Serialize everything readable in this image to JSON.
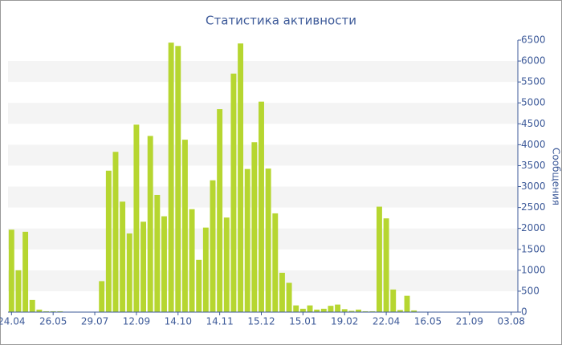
{
  "chart_data": {
    "type": "bar",
    "title": "Статистика активности",
    "y_label": "Сообщения",
    "categories": [
      "24.04",
      null,
      null,
      null,
      null,
      null,
      "26.05",
      null,
      null,
      null,
      null,
      null,
      "29.07",
      null,
      null,
      null,
      null,
      null,
      "12.09",
      null,
      null,
      null,
      null,
      null,
      "14.10",
      null,
      null,
      null,
      null,
      null,
      "14.11",
      null,
      null,
      null,
      null,
      null,
      "15.12",
      null,
      null,
      null,
      null,
      null,
      "15.01",
      null,
      null,
      null,
      null,
      null,
      "19.02",
      null,
      null,
      null,
      null,
      null,
      "22.04",
      null,
      null,
      null,
      null,
      null,
      "16.05",
      null,
      null,
      null,
      null,
      null,
      "21.09",
      null,
      null,
      null,
      null,
      null,
      "03.08"
    ],
    "values": [
      1970,
      1000,
      1920,
      290,
      60,
      20,
      20,
      20,
      10,
      10,
      10,
      10,
      10,
      740,
      3380,
      3830,
      2640,
      1880,
      4480,
      2160,
      4210,
      2800,
      2290,
      6440,
      6360,
      4120,
      2460,
      1250,
      2020,
      3150,
      4850,
      2260,
      5700,
      6420,
      3420,
      4060,
      5030,
      3430,
      2360,
      940,
      700,
      160,
      80,
      160,
      60,
      80,
      150,
      180,
      70,
      30,
      60,
      20,
      20,
      2520,
      2240,
      540,
      50,
      390,
      40,
      10,
      10,
      10,
      10,
      10,
      10,
      10,
      10,
      10,
      10,
      10,
      10,
      10,
      10
    ],
    "color": "#b6d630",
    "ylim": [
      0,
      6500
    ],
    "yticks": [
      0,
      500,
      1000,
      1500,
      2000,
      2500,
      3000,
      3500,
      4000,
      4500,
      5000,
      5500,
      6000,
      6500
    ],
    "grid": "bands"
  }
}
